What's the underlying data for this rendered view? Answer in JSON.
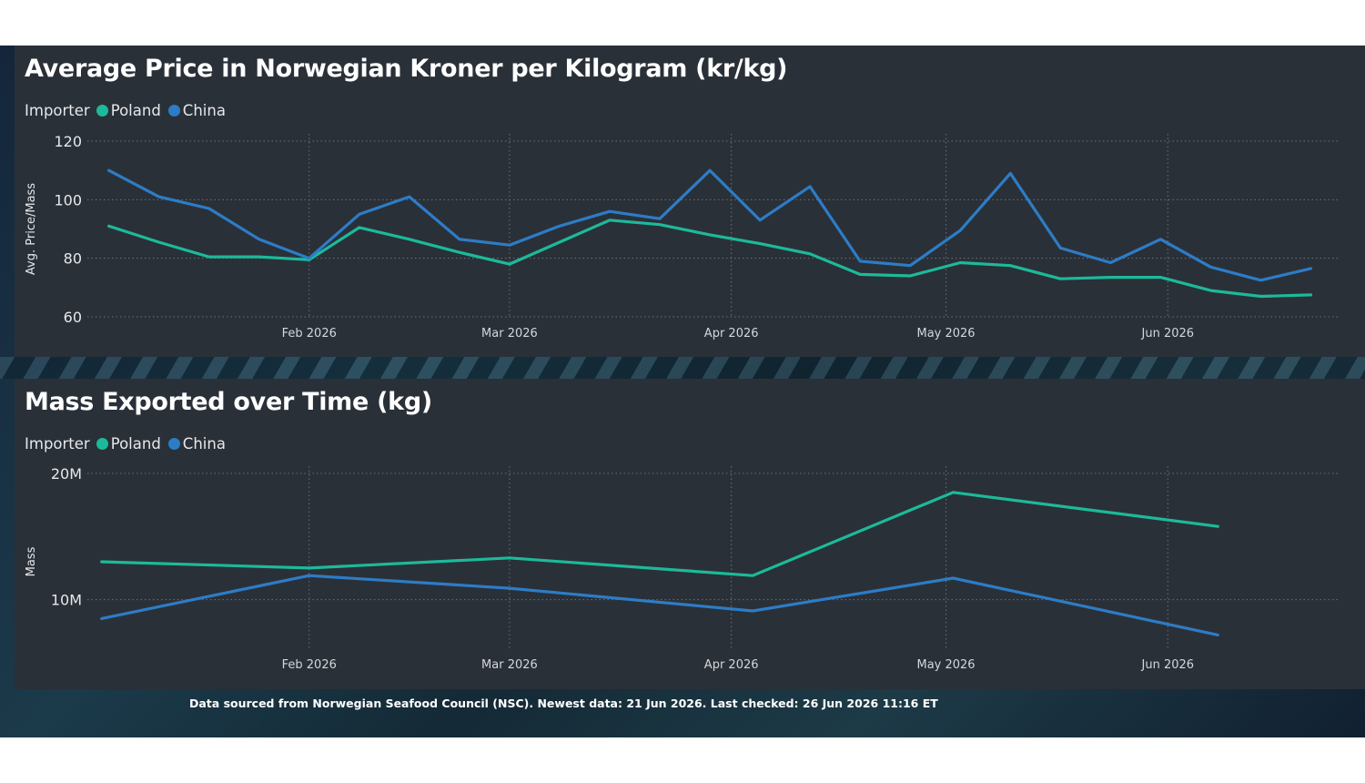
{
  "colors": {
    "poland": "#1cba9a",
    "china": "#2d7cc6",
    "grid": "#6a727c"
  },
  "footer": "Data sourced from Norwegian Seafood Council (NSC). Newest data: 21 Jun 2026. Last checked: 26 Jun 2026 11:16 ET",
  "chart_data": [
    {
      "type": "line",
      "title": "Average Price in Norwegian Kroner per Kilogram (kr/kg)",
      "legend_title": "Importer",
      "ylabel": "Avg. Price/Mass",
      "xlabel": "",
      "ylim": [
        60,
        120
      ],
      "yticks": [
        "60",
        "80",
        "100",
        "120"
      ],
      "xlim": [
        "2026-01-01",
        "2026-06-25"
      ],
      "xticks": [
        {
          "date": "2026-02-01",
          "label": "Feb 2026"
        },
        {
          "date": "2026-03-01",
          "label": "Mar 2026"
        },
        {
          "date": "2026-04-01",
          "label": "Apr 2026"
        },
        {
          "date": "2026-05-01",
          "label": "May 2026"
        },
        {
          "date": "2026-06-01",
          "label": "Jun 2026"
        }
      ],
      "x": [
        "2026-01-04",
        "2026-01-11",
        "2026-01-18",
        "2026-01-25",
        "2026-02-01",
        "2026-02-08",
        "2026-02-15",
        "2026-02-22",
        "2026-03-01",
        "2026-03-08",
        "2026-03-15",
        "2026-03-22",
        "2026-03-29",
        "2026-04-05",
        "2026-04-12",
        "2026-04-19",
        "2026-04-26",
        "2026-05-03",
        "2026-05-10",
        "2026-05-17",
        "2026-05-24",
        "2026-05-31",
        "2026-06-07",
        "2026-06-14",
        "2026-06-21"
      ],
      "grid": true,
      "legend_position": "top-left",
      "series": [
        {
          "name": "Poland",
          "color_key": "poland",
          "values": [
            91,
            85.5,
            80.5,
            80.5,
            79.5,
            90.5,
            86.5,
            82,
            78,
            85.5,
            93,
            91.5,
            88,
            85,
            81.5,
            74.5,
            74,
            78.5,
            77.5,
            73,
            73.5,
            73.5,
            69,
            67,
            67.5
          ]
        },
        {
          "name": "China",
          "color_key": "china",
          "values": [
            110,
            101,
            97,
            86.5,
            80,
            95,
            101,
            86.5,
            84.5,
            91,
            96,
            93.5,
            110,
            93,
            104.5,
            79,
            77.5,
            89.5,
            109,
            83.5,
            78.5,
            86.5,
            77,
            72.5,
            76.5
          ]
        }
      ]
    },
    {
      "type": "line",
      "title": "Mass Exported over Time (kg)",
      "legend_title": "Importer",
      "ylabel": "Mass",
      "xlabel": "",
      "ylim": [
        0,
        20000000
      ],
      "yticks": [
        {
          "value": 10000000,
          "label": "10M"
        },
        {
          "value": 20000000,
          "label": "20M"
        }
      ],
      "xlim": [
        "2026-01-01",
        "2026-06-25"
      ],
      "xticks": [
        {
          "date": "2026-02-01",
          "label": "Feb 2026"
        },
        {
          "date": "2026-03-01",
          "label": "Mar 2026"
        },
        {
          "date": "2026-04-01",
          "label": "Apr 2026"
        },
        {
          "date": "2026-05-01",
          "label": "May 2026"
        },
        {
          "date": "2026-06-01",
          "label": "Jun 2026"
        }
      ],
      "x": [
        "2026-01-03",
        "2026-02-01",
        "2026-03-01",
        "2026-04-04",
        "2026-05-02",
        "2026-06-08"
      ],
      "grid": true,
      "legend_position": "top-left",
      "series": [
        {
          "name": "Poland",
          "color_key": "poland",
          "values": [
            13000000,
            12500000,
            13300000,
            11900000,
            18500000,
            15800000
          ]
        },
        {
          "name": "China",
          "color_key": "china",
          "values": [
            8500000,
            11900000,
            10900000,
            9100000,
            11700000,
            7200000
          ]
        }
      ]
    }
  ]
}
